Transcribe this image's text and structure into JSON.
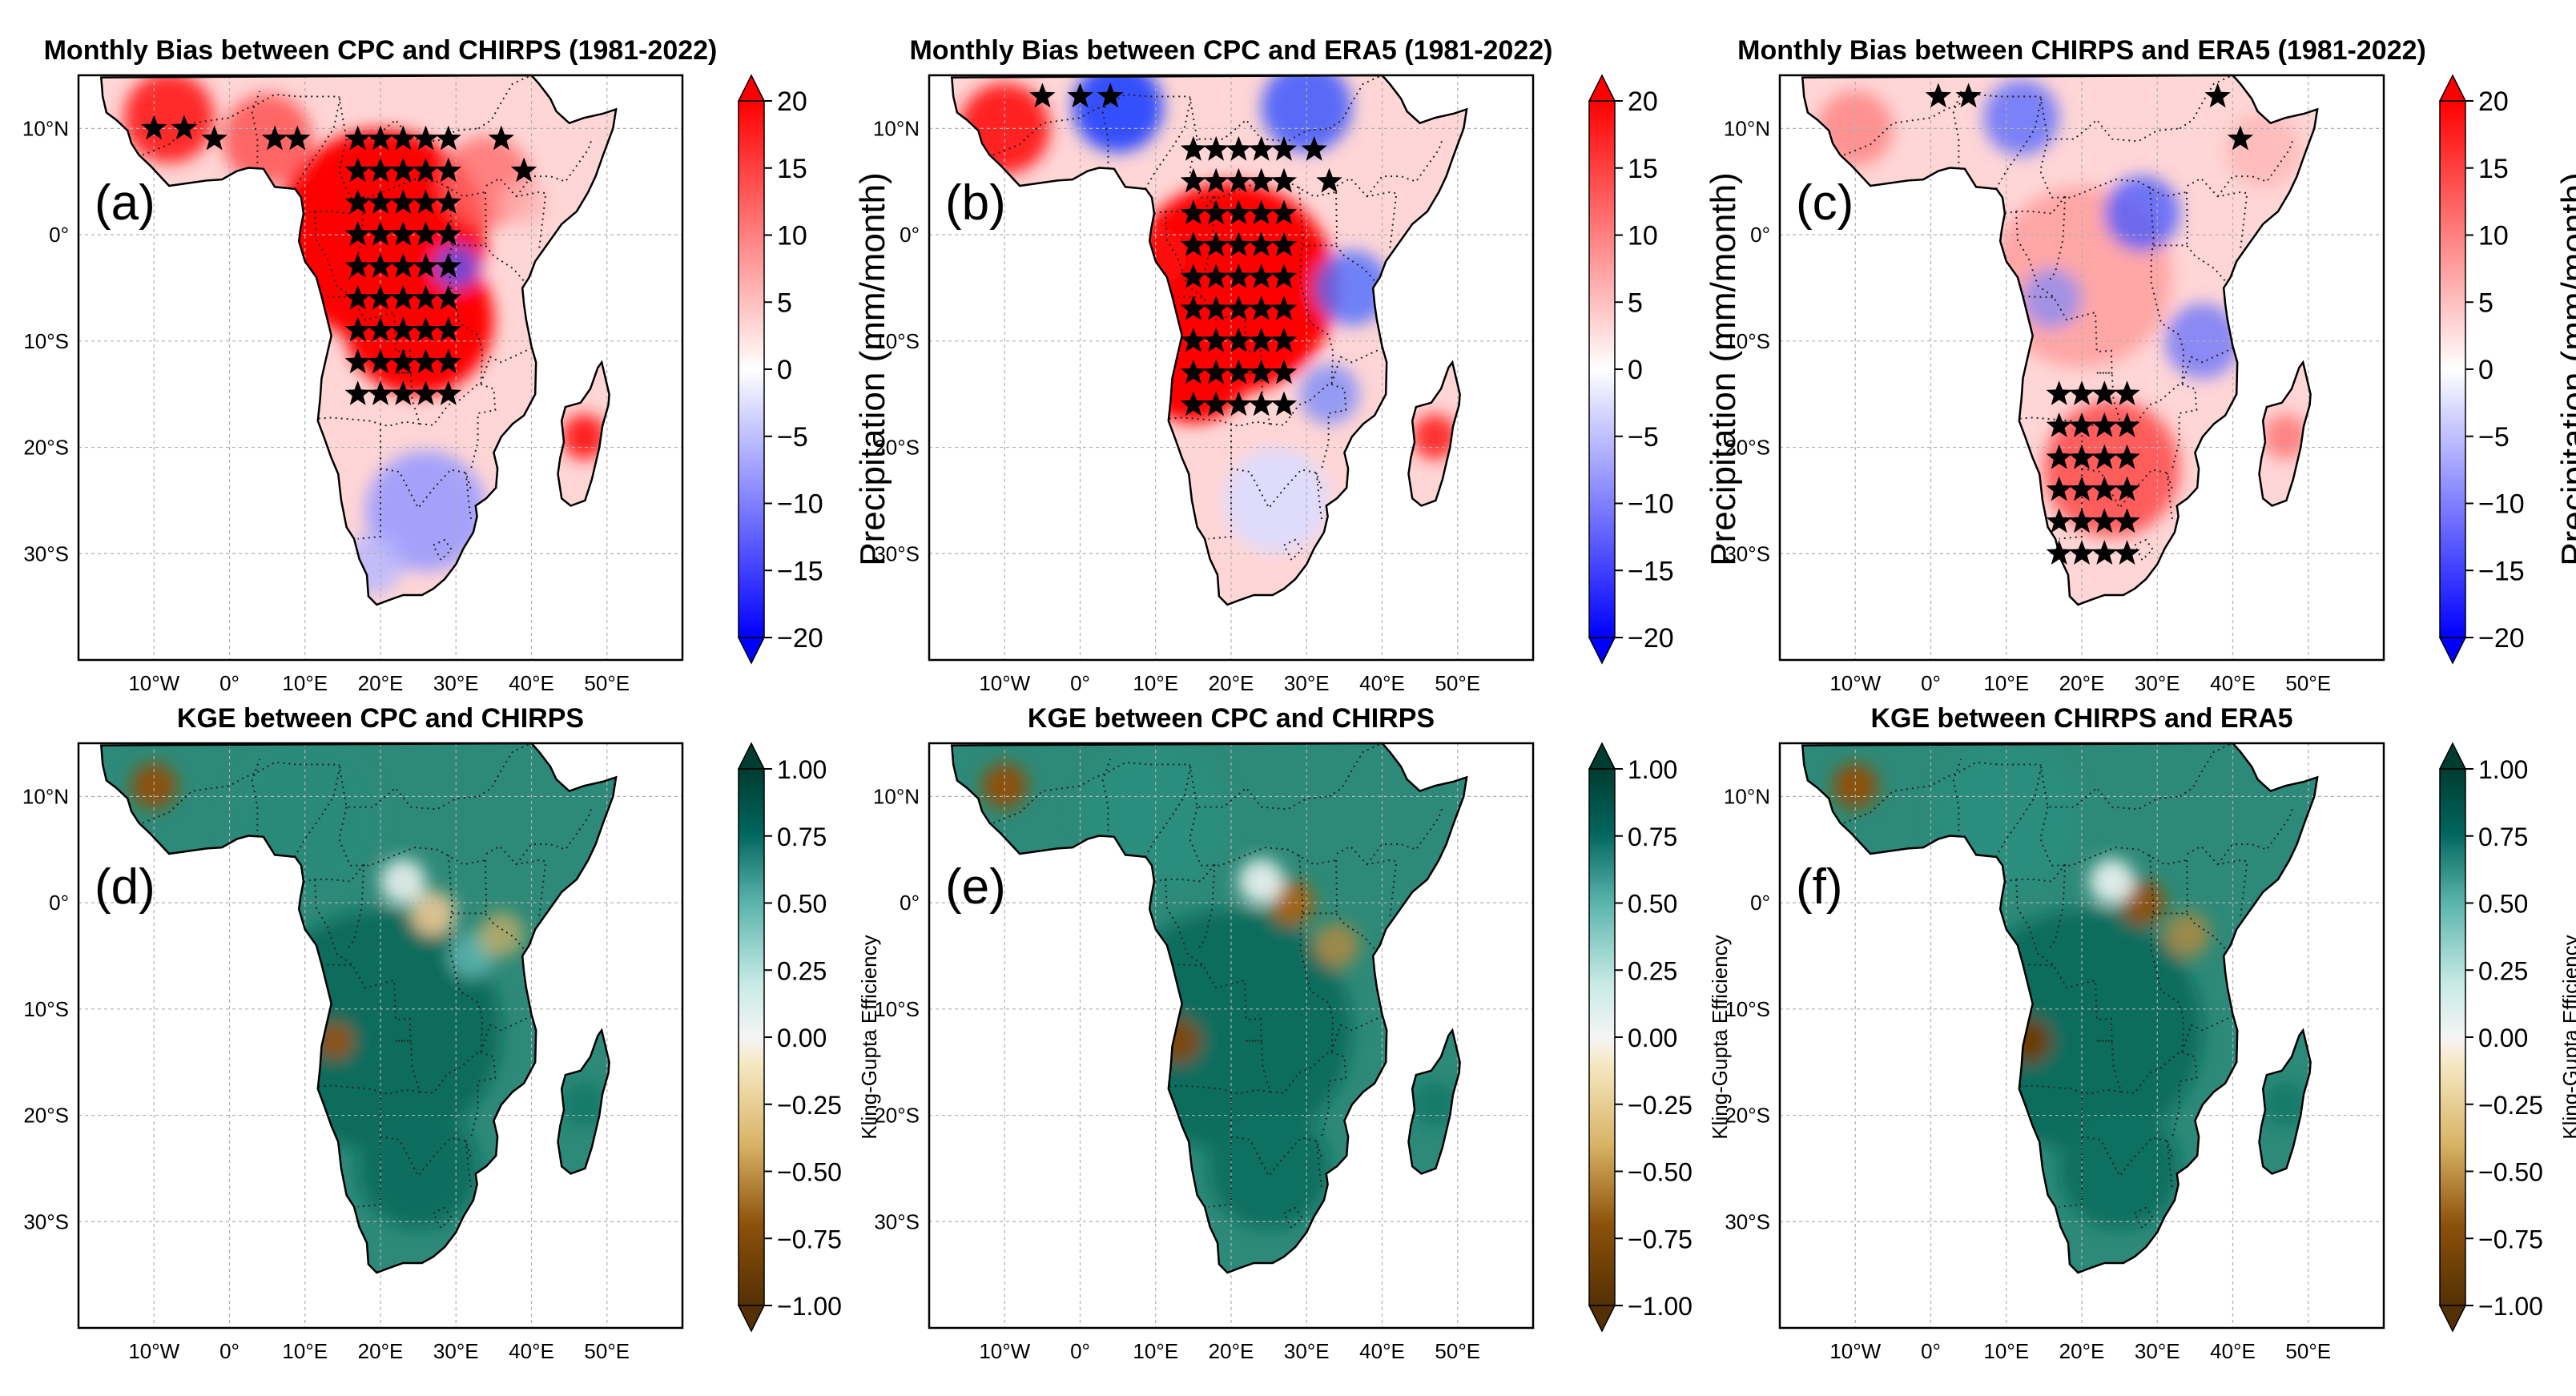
{
  "figure_label": "Six-panel map figure: monthly precipitation bias and KGE over southern/central Africa",
  "colors": {
    "bias_neg": "#0000ff",
    "bias_mid": "#ffffff",
    "bias_pos": "#ff0000",
    "kge_neg": "#543005",
    "kge_mid": "#f5f5f5",
    "kge_pos": "#003c30",
    "frame": "#000000",
    "grid": "#b0b0b0",
    "border": "#222222"
  },
  "axes": {
    "lon_ticks": [
      "10°W",
      "0°",
      "10°E",
      "20°E",
      "30°E",
      "40°E",
      "50°E"
    ],
    "lat_ticks": [
      "10°N",
      "0°",
      "10°S",
      "20°S",
      "30°S"
    ]
  },
  "colorbars": {
    "bias": {
      "label": "Precipitation (mm/month)",
      "ticks": [
        "20",
        "15",
        "10",
        "5",
        "0",
        "−5",
        "−10",
        "−15",
        "−20"
      ]
    },
    "kge": {
      "label": "Kling-Gupta Efficiency",
      "ticks": [
        "1.00",
        "0.75",
        "0.50",
        "0.25",
        "0.00",
        "−0.25",
        "−0.50",
        "−0.75",
        "−1.00"
      ]
    }
  },
  "panels": [
    {
      "id": "a",
      "title": "Monthly Bias between CPC and CHIRPS  (1981-2022)",
      "letter": "(a)",
      "kind": "bias"
    },
    {
      "id": "b",
      "title": "Monthly Bias between CPC and ERA5  (1981-2022)",
      "letter": "(b)",
      "kind": "bias"
    },
    {
      "id": "c",
      "title": "Monthly Bias between CHIRPS and ERA5  (1981-2022)",
      "letter": "(c)",
      "kind": "bias"
    },
    {
      "id": "d",
      "title": "KGE between CPC and CHIRPS",
      "letter": "(d)",
      "kind": "kge"
    },
    {
      "id": "e",
      "title": "KGE between CPC and CHIRPS",
      "letter": "(e)",
      "kind": "kge"
    },
    {
      "id": "f",
      "title": "KGE between CHIRPS and ERA5",
      "letter": "(f)",
      "kind": "kge"
    }
  ],
  "chart_data": [
    {
      "type": "heatmap",
      "title": "Monthly Bias between CPC and CHIRPS  (1981-2022)",
      "variable": "precipitation bias",
      "units": "mm/month",
      "clim": [
        -20,
        20
      ],
      "xlim_deg": [
        -20,
        60
      ],
      "ylim_deg": [
        -40,
        15
      ],
      "significance_markers": "stars over central Africa 15°E–30°E, 15°S–10°N",
      "pattern": "strong positive bias (red) over central Africa, weak negative (blue) over southern Africa"
    },
    {
      "type": "heatmap",
      "title": "Monthly Bias between CPC and ERA5  (1981-2022)",
      "variable": "precipitation bias",
      "units": "mm/month",
      "clim": [
        -20,
        20
      ],
      "xlim_deg": [
        -20,
        60
      ],
      "ylim_deg": [
        -40,
        15
      ],
      "pattern": "strong positive bias over central Africa and coastal rim, negative over Sahel belt and east"
    },
    {
      "type": "heatmap",
      "title": "Monthly Bias between CHIRPS and ERA5  (1981-2022)",
      "variable": "precipitation bias",
      "units": "mm/month",
      "clim": [
        -20,
        20
      ],
      "xlim_deg": [
        -20,
        60
      ],
      "ylim_deg": [
        -40,
        15
      ],
      "pattern": "mixed positive/negative, positive over southern Africa"
    },
    {
      "type": "heatmap",
      "title": "KGE between CPC and CHIRPS",
      "variable": "Kling-Gupta Efficiency",
      "clim": [
        -1,
        1
      ],
      "xlim_deg": [
        -20,
        60
      ],
      "ylim_deg": [
        -40,
        15
      ],
      "pattern": "mostly 0.5–1.0, negative near 12°E 13°S and Sahel patches"
    },
    {
      "type": "heatmap",
      "title": "KGE between CPC and CHIRPS",
      "variable": "Kling-Gupta Efficiency",
      "clim": [
        -1,
        1
      ],
      "xlim_deg": [
        -20,
        60
      ],
      "ylim_deg": [
        -40,
        15
      ],
      "pattern": "mostly 0.5–1.0, negative near Angola coast and East African Rift"
    },
    {
      "type": "heatmap",
      "title": "KGE between CHIRPS and ERA5",
      "variable": "Kling-Gupta Efficiency",
      "clim": [
        -1,
        1
      ],
      "xlim_deg": [
        -20,
        60
      ],
      "ylim_deg": [
        -40,
        15
      ],
      "pattern": "mostly 0.5–1.0, negative near Angola coast and East African Rift"
    }
  ]
}
